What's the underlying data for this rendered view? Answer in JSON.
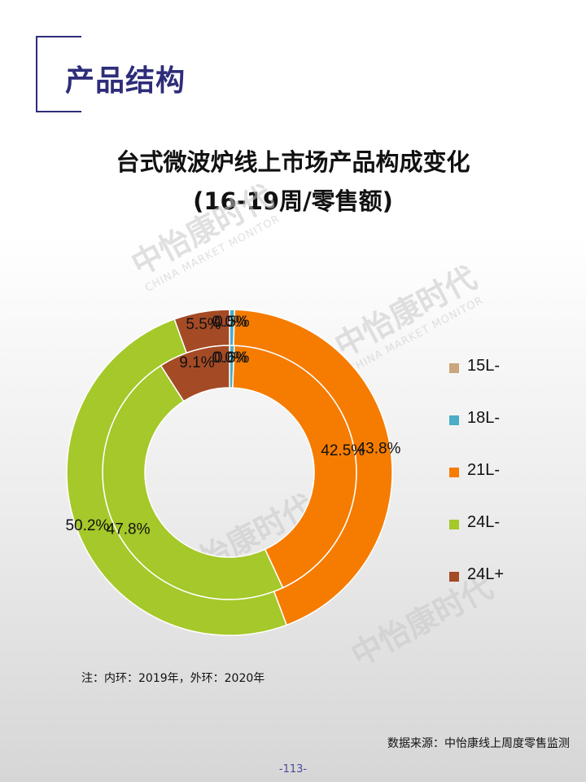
{
  "section_title": "产品结构",
  "chart_data": {
    "type": "pie",
    "title": "台式微波炉线上市场产品构成变化",
    "subtitle": "(16-19周/零售额)",
    "categories": [
      "15L-",
      "18L-",
      "21L-",
      "24L-",
      "24L+"
    ],
    "colors": [
      "#c9a77c",
      "#4bacc6",
      "#f57c00",
      "#a5c82a",
      "#a44a25"
    ],
    "series": [
      {
        "name": "2019",
        "ring": "inner",
        "values": [
          0.0,
          0.6,
          42.5,
          47.8,
          9.1
        ],
        "labels": [
          "0.0%",
          "0.6%",
          "42.5%",
          "47.8%",
          "9.1%"
        ]
      },
      {
        "name": "2020",
        "ring": "outer",
        "values": [
          0.0,
          0.5,
          43.8,
          50.2,
          5.5
        ],
        "labels": [
          "0.0%",
          "0.5%",
          "43.8%",
          "50.2%",
          "5.5%"
        ]
      }
    ],
    "legend_position": "right"
  },
  "watermark": {
    "cn": "中怡康时代",
    "en": "CHINA MARKET MONITOR"
  },
  "note": "注：内环：2019年，外环：2020年",
  "source": "数据来源：中怡康线上周度零售监测",
  "page_number": "-113-"
}
